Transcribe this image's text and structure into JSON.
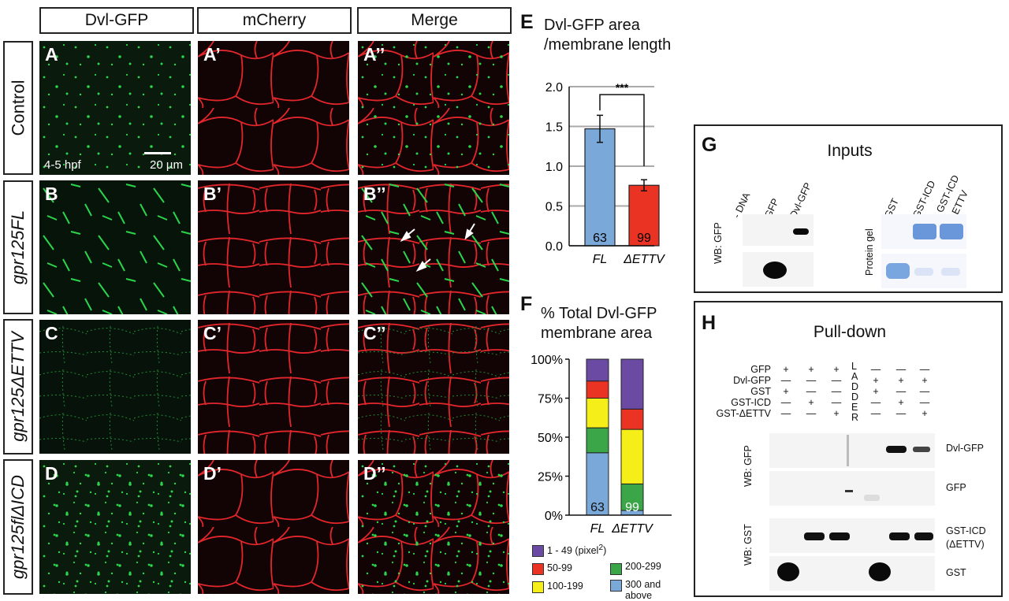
{
  "columns": {
    "c1": "Dvl-GFP",
    "c2": "mCherry",
    "c3": "Merge"
  },
  "rows": {
    "r1": "Control",
    "r2": "gpr125FL",
    "r3": "gpr125ΔETTV",
    "r4": "gpr125flΔICD"
  },
  "panels": {
    "a": "A",
    "a1": "A’",
    "a2": "A’’",
    "b": "B",
    "b1": "B’",
    "b2": "B’’",
    "c": "C",
    "c1": "C’",
    "c2": "C’’",
    "d": "D",
    "d1": "D’",
    "d2": "D’’"
  },
  "stage_label": "4-5 hpf",
  "scale_label": "20 µm",
  "E": {
    "letter": "E",
    "title_line1": "Dvl-GFP area",
    "title_line2": "/membrane length",
    "sig": "***"
  },
  "F": {
    "letter": "F",
    "title_line1": "% Total Dvl-GFP",
    "title_line2": "membrane area",
    "legend": [
      {
        "label": "1 - 49 (pixel",
        "sup": "2",
        ")": ")",
        "color": "#6a4aa3"
      },
      {
        "label": "50-99",
        "color": "#ea3323"
      },
      {
        "label": "200-299",
        "color": "#3aa648"
      },
      {
        "label": "100-199",
        "color": "#f6ee18"
      },
      {
        "label": "300 and above",
        "color": "#7aa9d9"
      }
    ]
  },
  "chart_data": [
    {
      "type": "bar",
      "title": "Dvl-GFP area /membrane length",
      "categories": [
        "FL",
        "ΔETTV"
      ],
      "values": [
        1.47,
        0.76
      ],
      "errors": [
        0.17,
        0.07
      ],
      "n": [
        "63",
        "99"
      ],
      "colors": [
        "#7aa9d9",
        "#ea3323"
      ],
      "ylim": [
        0,
        2.0
      ],
      "yticks": [
        "0.0",
        "0.5",
        "1.0",
        "1.5",
        "2.0"
      ],
      "grid": true,
      "annotation": "***"
    },
    {
      "type": "bar",
      "stacked": true,
      "title": "% Total Dvl-GFP membrane area",
      "categories": [
        "FL",
        "ΔETTV"
      ],
      "yticks": [
        "0%",
        "25%",
        "50%",
        "75%",
        "100%"
      ],
      "ylim": [
        0,
        100
      ],
      "n": [
        "63",
        "99"
      ],
      "series": [
        {
          "name": "300 and above",
          "values": [
            40,
            3
          ],
          "color": "#7aa9d9"
        },
        {
          "name": "200-299",
          "values": [
            16,
            17
          ],
          "color": "#3aa648"
        },
        {
          "name": "100-199",
          "values": [
            19,
            35
          ],
          "color": "#f6ee18"
        },
        {
          "name": "50-99",
          "values": [
            11,
            13
          ],
          "color": "#ea3323"
        },
        {
          "name": "1 - 49 (pixel2)",
          "values": [
            14,
            32
          ],
          "color": "#6a4aa3"
        }
      ]
    }
  ],
  "G": {
    "letter": "G",
    "title": "Inputs",
    "lanes_left": [
      "- DNA",
      "GFP",
      "Dvl-GFP"
    ],
    "lanes_right": [
      "GST",
      "GST-ICD",
      "GST-ICD",
      "ΔETTV"
    ],
    "wb_left": "WB: GFP",
    "wb_right": "Protein gel"
  },
  "H": {
    "letter": "H",
    "title": "Pull-down",
    "conditions": [
      "GFP",
      "Dvl-GFP",
      "GST",
      "GST-ICD",
      "GST-ΔETTV"
    ],
    "signs": [
      [
        "+",
        "+",
        "+",
        "—",
        "—",
        "—"
      ],
      [
        "—",
        "—",
        "—",
        "+",
        "+",
        "+"
      ],
      [
        "+",
        "—",
        "—",
        "+",
        "—",
        "—"
      ],
      [
        "—",
        "+",
        "—",
        "—",
        "+",
        "—"
      ],
      [
        "—",
        "—",
        "+",
        "—",
        "—",
        "+"
      ]
    ],
    "ladder": [
      "L",
      "A",
      "D",
      "D",
      "E",
      "R"
    ],
    "wb_gfp": "WB: GFP",
    "wb_gst": "WB: GST",
    "band_labels": [
      "Dvl-GFP",
      "GFP",
      "GST-ICD",
      "(ΔETTV)",
      "GST"
    ]
  }
}
